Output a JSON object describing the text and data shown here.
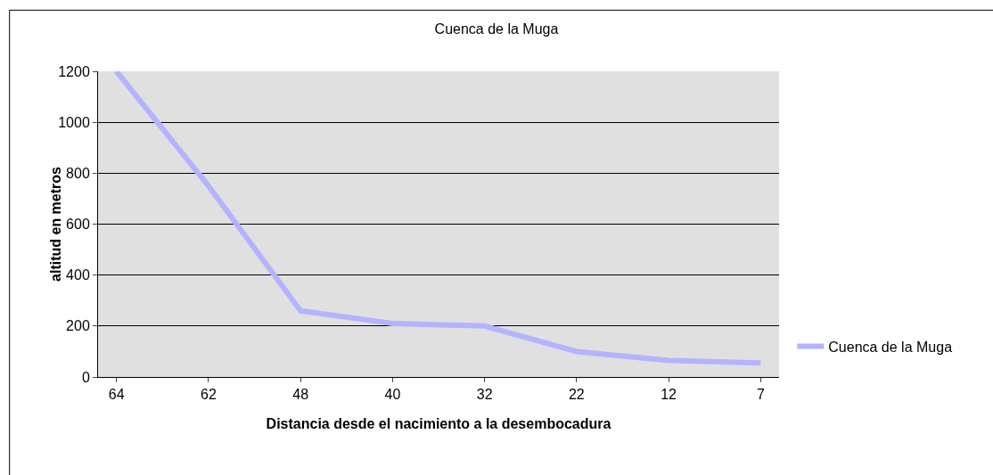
{
  "chart_data": {
    "type": "line",
    "title": "Cuenca de la Muga",
    "xlabel": "Distancia desde el nacimiento a la desembocadura",
    "ylabel": "altitud en metros",
    "categories": [
      "64",
      "62",
      "48",
      "40",
      "32",
      "22",
      "12",
      "7"
    ],
    "series": [
      {
        "name": "Cuenca de la Muga",
        "color": "#b3b3ff",
        "values": [
          1200,
          750,
          260,
          210,
          200,
          100,
          65,
          55
        ]
      }
    ],
    "ylim": [
      0,
      1200
    ],
    "yticks": [
      0,
      200,
      400,
      600,
      800,
      1000,
      1200
    ],
    "grid": "y",
    "legend": "right",
    "marker": "none",
    "line_style": "solid"
  }
}
